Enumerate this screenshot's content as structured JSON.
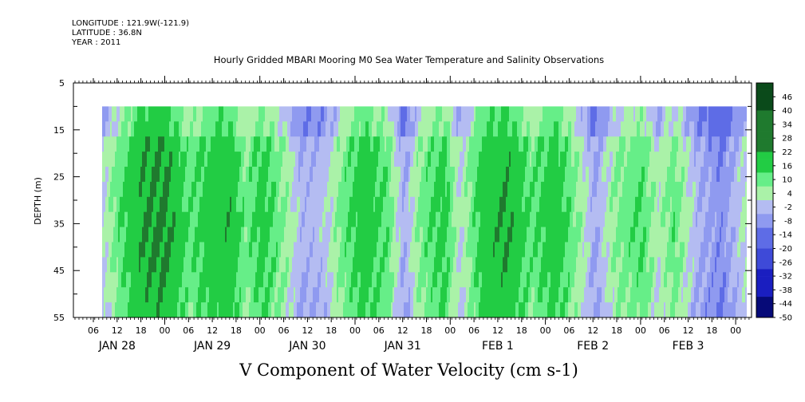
{
  "meta": {
    "longitude": "LONGITUDE : 121.9W(-121.9)",
    "latitude": "LATITUDE : 36.8N",
    "year": "YEAR : 2011"
  },
  "chart_data": {
    "type": "heatmap",
    "title": "Hourly Gridded MBARI Mooring M0 Sea Water Temperature and Salinity Observations",
    "variable_label": "V Component of Water Velocity (cm s-1)",
    "xlabel": "",
    "ylabel": "DEPTH (m)",
    "y_ticks": [
      "5",
      "15",
      "25",
      "35",
      "45",
      "55"
    ],
    "ylim": [
      5,
      55
    ],
    "y_inverted": true,
    "data_depth_range": [
      10,
      55
    ],
    "x_hour_ticks": [
      "06",
      "12",
      "18",
      "00",
      "06",
      "12",
      "18",
      "00",
      "06",
      "12",
      "18",
      "00",
      "06",
      "12",
      "18",
      "00",
      "06",
      "12",
      "18",
      "00",
      "06",
      "12",
      "18",
      "00",
      "06",
      "12",
      "18",
      "00"
    ],
    "x_dates": [
      "JAN 28",
      "JAN 29",
      "JAN 30",
      "JAN 31",
      "FEB  1",
      "FEB  2",
      "FEB  3"
    ],
    "colorbar_levels": [
      "46",
      "40",
      "34",
      "28",
      "22",
      "16",
      "10",
      "4",
      "-2",
      "-8",
      "-14",
      "-20",
      "-26",
      "-32",
      "-38",
      "-44",
      "-50"
    ],
    "colorbar_range": [
      -50,
      52
    ],
    "colors": {
      "very_dark_green": "#0a4a1a",
      "dark_green": "#1f7a2e",
      "green": "#22cc44",
      "light_green": "#66ee88",
      "pale_green": "#aaf2a8",
      "pale_blue": "#b4bcf2",
      "light_blue": "#8f9af0",
      "blue": "#5e6ce6",
      "mid_blue": "#3e4ad8",
      "dark_blue": "#1a1ec0",
      "navy": "#060a78"
    },
    "bands_by_hour": [
      {
        "hour": 0,
        "value": -4
      },
      {
        "hour": 4,
        "value": 6
      },
      {
        "hour": 10,
        "value": 18
      },
      {
        "hour": 16,
        "value": 20
      },
      {
        "hour": 22,
        "value": 6
      },
      {
        "hour": 26,
        "value": 12
      },
      {
        "hour": 32,
        "value": 16
      },
      {
        "hour": 36,
        "value": 4
      },
      {
        "hour": 40,
        "value": 12
      },
      {
        "hour": 46,
        "value": 2
      },
      {
        "hour": 50,
        "value": -8
      },
      {
        "hour": 56,
        "value": -6
      },
      {
        "hour": 60,
        "value": 4
      },
      {
        "hour": 66,
        "value": 14
      },
      {
        "hour": 72,
        "value": 6
      },
      {
        "hour": 76,
        "value": -10
      },
      {
        "hour": 80,
        "value": 4
      },
      {
        "hour": 86,
        "value": 12
      },
      {
        "hour": 90,
        "value": -4
      },
      {
        "hour": 96,
        "value": 14
      },
      {
        "hour": 102,
        "value": 18
      },
      {
        "hour": 108,
        "value": 6
      },
      {
        "hour": 114,
        "value": 14
      },
      {
        "hour": 120,
        "value": 2
      },
      {
        "hour": 124,
        "value": -10
      },
      {
        "hour": 130,
        "value": 4
      },
      {
        "hour": 136,
        "value": 8
      },
      {
        "hour": 140,
        "value": -2
      },
      {
        "hour": 144,
        "value": 6
      },
      {
        "hour": 150,
        "value": -8
      },
      {
        "hour": 156,
        "value": -14
      },
      {
        "hour": 160,
        "value": -6
      },
      {
        "hour": 166,
        "value": 4
      },
      {
        "hour": 172,
        "value": -8
      },
      {
        "hour": 178,
        "value": 8
      }
    ]
  }
}
